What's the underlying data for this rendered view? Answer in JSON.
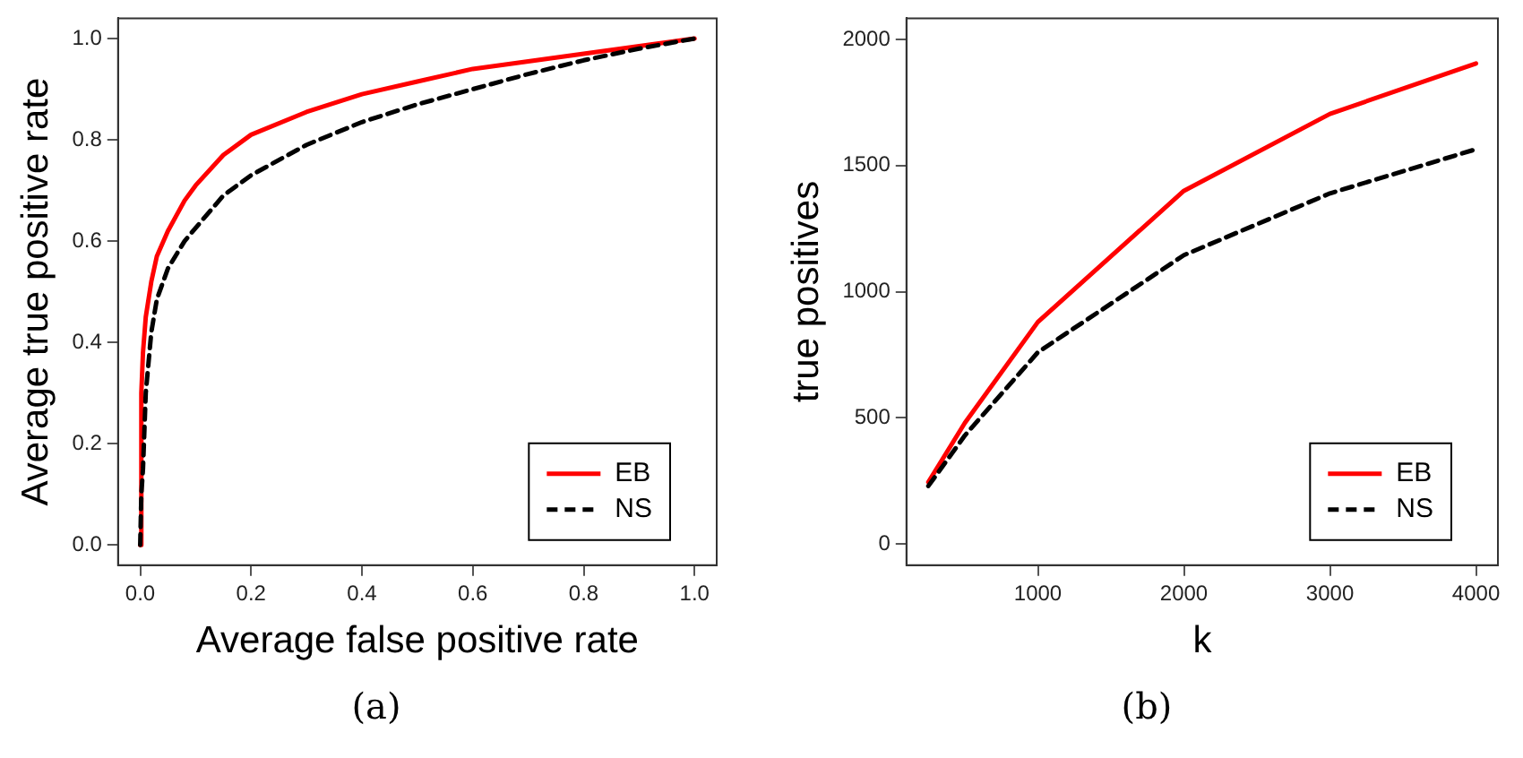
{
  "chart_data": [
    {
      "type": "line",
      "xlabel": "Average false positive rate",
      "ylabel": "Average true positive rate",
      "annotations": [
        "(a)"
      ],
      "x": [
        0,
        0.002,
        0.005,
        0.01,
        0.02,
        0.03,
        0.05,
        0.08,
        0.1,
        0.15,
        0.2,
        0.3,
        0.4,
        0.5,
        0.6,
        0.7,
        0.8,
        0.9,
        1
      ],
      "series": [
        {
          "name": "EB",
          "color": "#ff0000",
          "line_style": "solid",
          "values": [
            0,
            0.3,
            0.38,
            0.45,
            0.52,
            0.57,
            0.62,
            0.68,
            0.71,
            0.77,
            0.81,
            0.855,
            0.89,
            0.915,
            0.94,
            0.955,
            0.97,
            0.985,
            1
          ]
        },
        {
          "name": "NS",
          "color": "#000000",
          "line_style": "dashed",
          "values": [
            0,
            0.1,
            0.15,
            0.3,
            0.42,
            0.485,
            0.546,
            0.6,
            0.626,
            0.69,
            0.73,
            0.79,
            0.835,
            0.87,
            0.9,
            0.93,
            0.957,
            0.98,
            1
          ]
        }
      ],
      "xlim": [
        -0.04,
        1.04
      ],
      "ylim": [
        -0.04,
        1.04
      ],
      "xticks": [
        {
          "value": 0,
          "label": "0.0"
        },
        0.2,
        0.4,
        0.6,
        0.8,
        {
          "value": 1,
          "label": "1.0"
        }
      ],
      "yticks": [
        {
          "value": 0,
          "label": "0.0"
        },
        0.2,
        0.4,
        0.6,
        0.8,
        {
          "value": 1,
          "label": "1.0"
        }
      ],
      "grid": false,
      "legend": "bottom right",
      "marker": "none"
    },
    {
      "type": "line",
      "xlabel": "k",
      "ylabel": "true positives",
      "annotations": [
        "(b)"
      ],
      "x": [
        250,
        500,
        1000,
        2000,
        3000,
        4000
      ],
      "series": [
        {
          "name": "EB",
          "color": "#ff0000",
          "line_style": "solid",
          "values": [
            245,
            480,
            880,
            1400,
            1705,
            1905
          ]
        },
        {
          "name": "NS",
          "color": "#000000",
          "line_style": "dashed",
          "values": [
            230,
            430,
            760,
            1145,
            1390,
            1565
          ]
        }
      ],
      "xlim": [
        100,
        4150
      ],
      "ylim": [
        -84,
        2084
      ],
      "xticks": [
        1000,
        2000,
        3000,
        4000
      ],
      "yticks": [
        0,
        500,
        1000,
        1500,
        2000
      ],
      "grid": false,
      "legend": "bottom right",
      "marker": "none"
    }
  ]
}
